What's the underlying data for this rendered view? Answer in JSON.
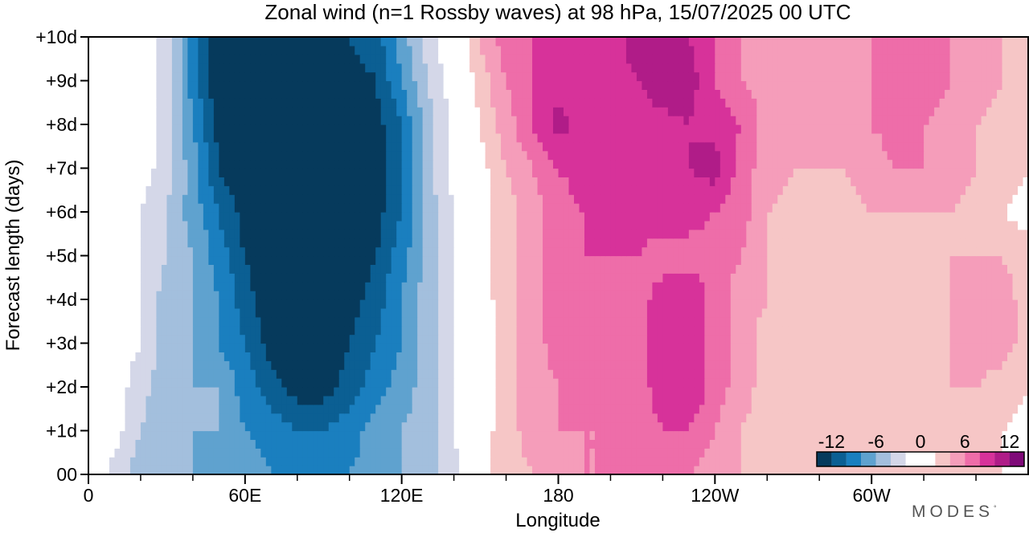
{
  "chart_data": {
    "type": "heatmap",
    "title": "Zonal wind (n=1 Rossby waves) at 98 hPa,  15/07/2025  00 UTC",
    "xlabel": "Longitude",
    "ylabel": "Forecast length (days)",
    "x_ticks": [
      "0",
      "60E",
      "120E",
      "180",
      "120W",
      "60W"
    ],
    "x_tick_values": [
      0,
      60,
      120,
      180,
      240,
      300
    ],
    "y_ticks": [
      "00",
      "+1d",
      "+2d",
      "+3d",
      "+4d",
      "+5d",
      "+6d",
      "+7d",
      "+8d",
      "+9d",
      "+10d"
    ],
    "xlim": [
      0,
      360
    ],
    "ylim": [
      0,
      10
    ],
    "x_lon": [
      0,
      10,
      20,
      30,
      40,
      50,
      60,
      70,
      80,
      90,
      100,
      110,
      120,
      130,
      140,
      150,
      160,
      170,
      180,
      190,
      200,
      210,
      220,
      230,
      240,
      250,
      260,
      270,
      280,
      290,
      300,
      310,
      320,
      330,
      340,
      350,
      360
    ],
    "y_days": [
      0,
      1,
      2,
      3,
      4,
      5,
      6,
      7,
      8,
      9,
      10
    ],
    "values": [
      [
        0,
        -3,
        -5,
        -6,
        -6,
        -7,
        -7,
        -8,
        -9,
        -9,
        -8,
        -7,
        -6,
        -5,
        -3,
        1,
        3,
        4,
        5,
        6,
        6,
        6,
        6,
        6,
        5,
        4,
        3,
        3,
        3,
        3,
        3,
        3,
        3,
        3,
        3,
        2,
        1
      ],
      [
        0,
        -1,
        -4,
        -6,
        -6,
        -6,
        -8,
        -9,
        -10,
        -10,
        -9,
        -7,
        -6,
        -5,
        -2,
        1,
        3,
        5,
        6,
        6,
        6,
        7,
        8,
        8,
        6,
        4,
        3,
        3,
        3,
        3,
        3,
        3,
        3,
        3,
        3,
        2,
        1
      ],
      [
        0,
        -1,
        -3,
        -6,
        -6,
        -6,
        -9,
        -11,
        -13,
        -13,
        -11,
        -9,
        -7,
        -5,
        -2,
        0,
        3,
        5,
        6,
        7,
        7,
        7,
        9,
        10,
        7,
        5,
        3,
        3,
        3,
        3,
        3,
        3,
        3,
        4,
        4,
        3,
        2
      ],
      [
        0,
        -1,
        -2,
        -5,
        -6,
        -8,
        -10,
        -13,
        -14,
        -14,
        -12,
        -10,
        -8,
        -5,
        -2,
        0,
        3,
        5,
        7,
        8,
        7,
        7,
        9,
        10,
        7,
        5,
        3,
        3,
        3,
        3,
        3,
        3,
        3,
        4,
        5,
        5,
        3
      ],
      [
        0,
        -1,
        -2,
        -5,
        -6,
        -8,
        -11,
        -14,
        -14,
        -14,
        -13,
        -11,
        -8,
        -5,
        -2,
        1,
        3,
        5,
        7,
        8,
        7,
        7,
        9,
        10,
        7,
        5,
        4,
        3,
        3,
        3,
        3,
        3,
        3,
        4,
        5,
        5,
        3
      ],
      [
        1,
        0,
        -2,
        -4,
        -6,
        -9,
        -12,
        -14,
        -14,
        -14,
        -14,
        -12,
        -9,
        -5,
        -2,
        1,
        3,
        5,
        7,
        8,
        8,
        8,
        7,
        7,
        7,
        6,
        4,
        3,
        3,
        3,
        3,
        3,
        3,
        4,
        4,
        4,
        3
      ],
      [
        0,
        0,
        -2,
        -4,
        -7,
        -10,
        -13,
        -14,
        -14,
        -14,
        -14,
        -13,
        -10,
        -5,
        -2,
        1,
        3,
        5,
        7,
        8,
        8,
        9,
        9,
        9,
        8,
        7,
        4,
        3,
        3,
        3,
        4,
        4,
        4,
        4,
        3,
        2,
        1
      ],
      [
        0,
        0,
        -1,
        -3,
        -7,
        -12,
        -14,
        -14,
        -14,
        -14,
        -14,
        -13,
        -10,
        -5,
        -1,
        1,
        4,
        6,
        8,
        9,
        8,
        8,
        9,
        10,
        11,
        7,
        5,
        4,
        4,
        4,
        5,
        6,
        6,
        5,
        4,
        3,
        2
      ],
      [
        0,
        0,
        -1,
        -3,
        -8,
        -13,
        -14,
        -14,
        -14,
        -14,
        -14,
        -13,
        -10,
        -5,
        -1,
        2,
        5,
        8,
        11,
        9,
        8,
        8,
        9,
        10,
        9,
        8,
        5,
        4,
        4,
        5,
        6,
        7,
        6,
        5,
        4,
        3,
        2
      ],
      [
        0,
        0,
        -1,
        -3,
        -9,
        -14,
        -14,
        -14,
        -14,
        -14,
        -13,
        -12,
        -8,
        -4,
        -1,
        3,
        6,
        8,
        9,
        9,
        9,
        10,
        12,
        11,
        8,
        6,
        5,
        5,
        4,
        5,
        6,
        7,
        7,
        6,
        5,
        4,
        2
      ],
      [
        0,
        0,
        -1,
        -3,
        -9,
        -14,
        -14,
        -14,
        -14,
        -14,
        -12,
        -11,
        -7,
        -3,
        0,
        4,
        7,
        8,
        8,
        8,
        9,
        11,
        12,
        10,
        8,
        6,
        5,
        5,
        4,
        5,
        6,
        8,
        8,
        6,
        5,
        4,
        2
      ]
    ],
    "colorbar": {
      "tick_labels": [
        "-12",
        "-6",
        "0",
        "6",
        "12"
      ],
      "tick_values": [
        -12,
        -6,
        0,
        6,
        12
      ],
      "levels": [
        -14,
        -12,
        -10,
        -8,
        -6,
        -4,
        -2,
        2,
        4,
        6,
        8,
        10,
        12,
        14
      ],
      "colors": [
        "#063a5c",
        "#0b5f93",
        "#1a7fbf",
        "#5fa2cf",
        "#a3bfdd",
        "#d4d7e8",
        "#ffffff",
        "#f6c6c6",
        "#f59dba",
        "#ee6da9",
        "#d7329a",
        "#b01c88",
        "#7f0a79"
      ],
      "placement": "bottom-right"
    },
    "grid": false
  },
  "branding": {
    "text": "MODES",
    "mark": "°"
  }
}
